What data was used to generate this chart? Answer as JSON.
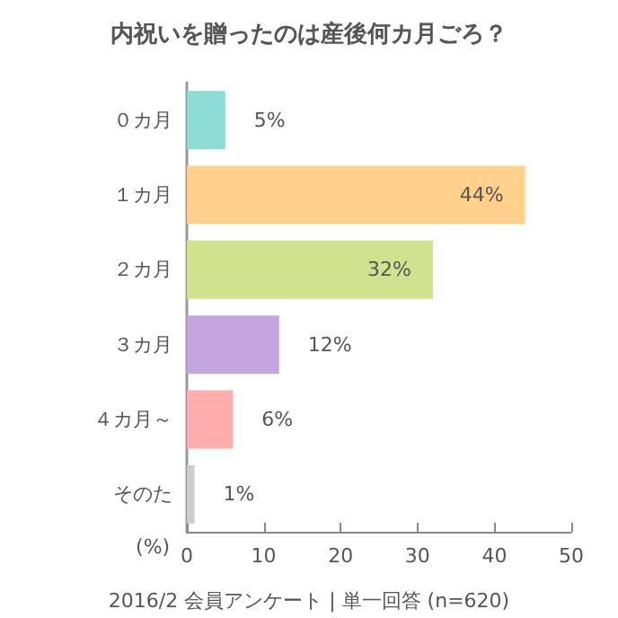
{
  "chart_data": {
    "type": "bar",
    "orientation": "horizontal",
    "title": "内祝いを贈ったのは産後何カ月ごろ？",
    "categories": [
      "０カ月",
      "１カ月",
      "２カ月",
      "３カ月",
      "４カ月～",
      "そのた"
    ],
    "values": [
      5,
      44,
      32,
      12,
      6,
      1
    ],
    "colors": [
      "#8ddcd6",
      "#ffd18c",
      "#cfe38f",
      "#c4a5e0",
      "#ffadad",
      "#cccccc"
    ],
    "xlabel": "(%)",
    "xlim": [
      0,
      50
    ],
    "xticks": [
      0,
      10,
      20,
      30,
      40,
      50
    ],
    "value_labels": [
      "5%",
      "44%",
      "32%",
      "12%",
      "6%",
      "1%"
    ],
    "annotations": [
      "2016/2 会員アンケート | 単一回答 (n=620)"
    ],
    "grid": false
  }
}
